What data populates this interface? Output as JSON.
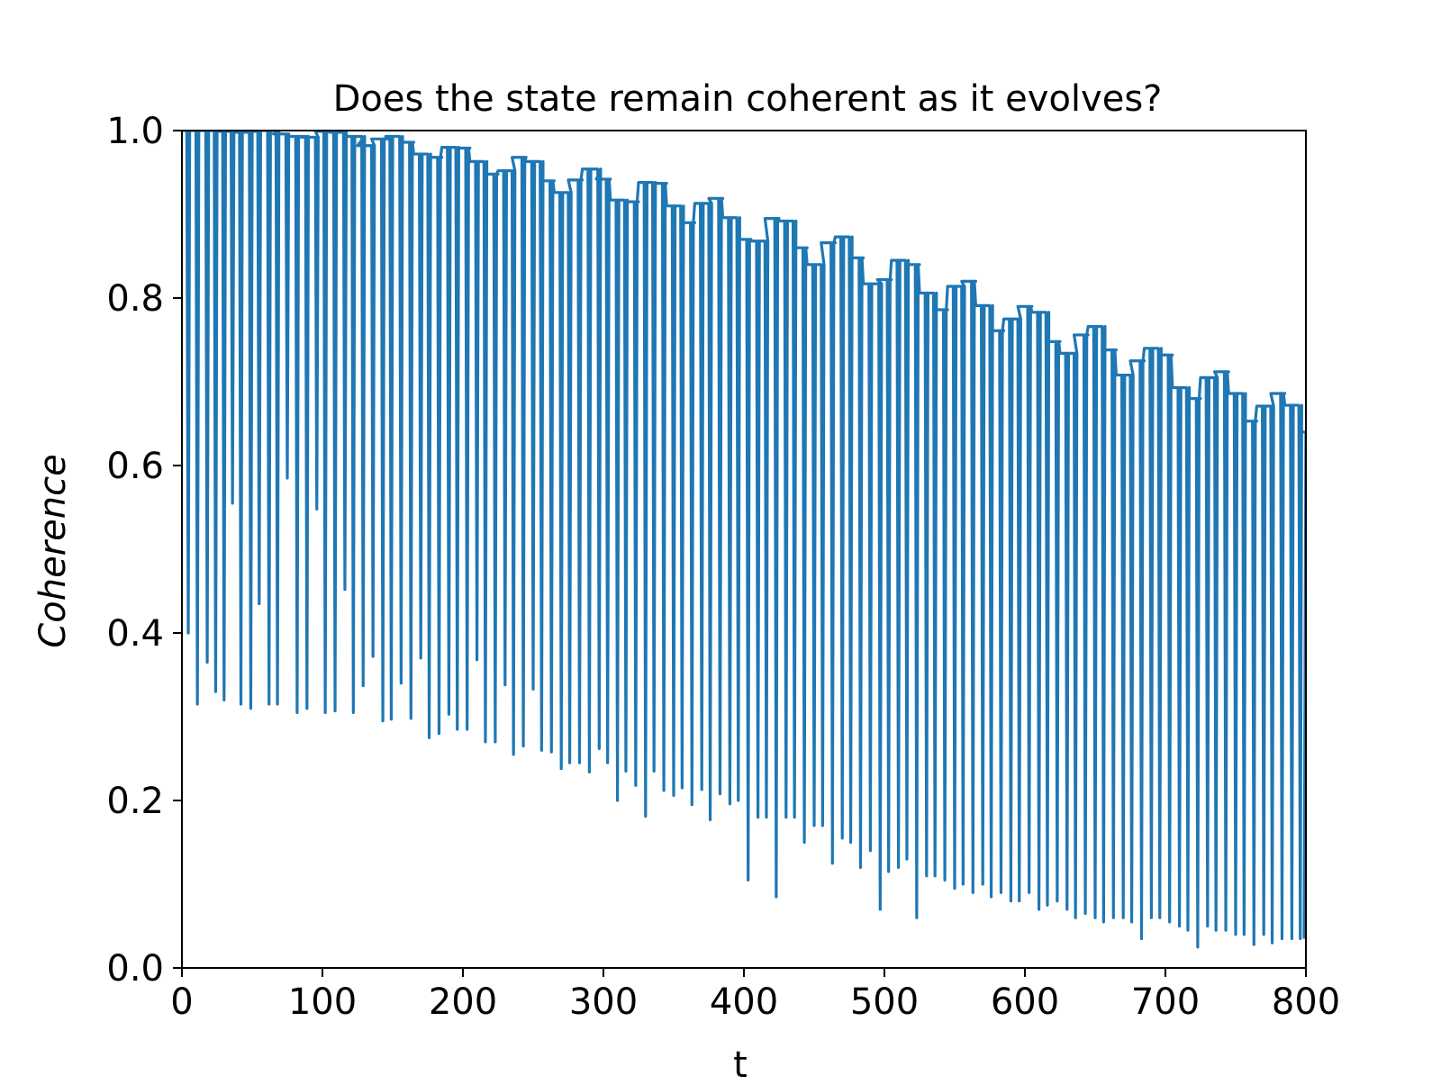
{
  "chart_data": {
    "type": "line",
    "title": "Does the state remain coherent as it evolves?",
    "xlabel": "t",
    "ylabel": "Coherence",
    "ylabel_style": "italic",
    "xlim": [
      0,
      800
    ],
    "ylim": [
      0.0,
      1.0
    ],
    "xticks": [
      "0",
      "100",
      "200",
      "300",
      "400",
      "500",
      "600",
      "700",
      "800"
    ],
    "yticks": [
      "0.0",
      "0.2",
      "0.4",
      "0.6",
      "0.8",
      "1.0"
    ],
    "grid": false,
    "legend": "none",
    "line_color": "#1f77b4",
    "series": [
      {
        "sample_spacing": 10,
        "maxima": [
          [
            0,
            1.0
          ],
          [
            10,
            1.0
          ],
          [
            20,
            1.0
          ],
          [
            30,
            0.999
          ],
          [
            40,
            0.998
          ],
          [
            50,
            0.999
          ],
          [
            60,
            1.0
          ],
          [
            70,
            0.996
          ],
          [
            80,
            0.993
          ],
          [
            90,
            0.992
          ],
          [
            100,
            0.999
          ],
          [
            110,
            0.998
          ],
          [
            120,
            0.993
          ],
          [
            130,
            0.982
          ],
          [
            140,
            0.99
          ],
          [
            150,
            0.993
          ],
          [
            160,
            0.986
          ],
          [
            170,
            0.972
          ],
          [
            180,
            0.968
          ],
          [
            190,
            0.98
          ],
          [
            200,
            0.979
          ],
          [
            210,
            0.963
          ],
          [
            220,
            0.948
          ],
          [
            230,
            0.952
          ],
          [
            240,
            0.968
          ],
          [
            250,
            0.963
          ],
          [
            260,
            0.94
          ],
          [
            270,
            0.926
          ],
          [
            280,
            0.941
          ],
          [
            290,
            0.954
          ],
          [
            300,
            0.942
          ],
          [
            310,
            0.917
          ],
          [
            320,
            0.915
          ],
          [
            330,
            0.938
          ],
          [
            340,
            0.937
          ],
          [
            350,
            0.91
          ],
          [
            360,
            0.89
          ],
          [
            370,
            0.913
          ],
          [
            380,
            0.919
          ],
          [
            390,
            0.896
          ],
          [
            400,
            0.87
          ],
          [
            410,
            0.868
          ],
          [
            420,
            0.895
          ],
          [
            430,
            0.892
          ],
          [
            440,
            0.86
          ],
          [
            450,
            0.84
          ],
          [
            460,
            0.866
          ],
          [
            470,
            0.873
          ],
          [
            480,
            0.848
          ],
          [
            490,
            0.817
          ],
          [
            500,
            0.822
          ],
          [
            510,
            0.845
          ],
          [
            520,
            0.84
          ],
          [
            530,
            0.806
          ],
          [
            540,
            0.786
          ],
          [
            550,
            0.814
          ],
          [
            560,
            0.82
          ],
          [
            570,
            0.791
          ],
          [
            580,
            0.761
          ],
          [
            590,
            0.775
          ],
          [
            600,
            0.79
          ],
          [
            610,
            0.783
          ],
          [
            620,
            0.748
          ],
          [
            630,
            0.734
          ],
          [
            640,
            0.756
          ],
          [
            650,
            0.766
          ],
          [
            660,
            0.738
          ],
          [
            670,
            0.708
          ],
          [
            680,
            0.725
          ],
          [
            690,
            0.74
          ],
          [
            700,
            0.732
          ],
          [
            710,
            0.693
          ],
          [
            720,
            0.68
          ],
          [
            730,
            0.705
          ],
          [
            740,
            0.712
          ],
          [
            750,
            0.686
          ],
          [
            760,
            0.653
          ],
          [
            770,
            0.671
          ],
          [
            780,
            0.686
          ],
          [
            790,
            0.672
          ],
          [
            800,
            0.64
          ]
        ],
        "minima": [
          [
            4.5,
            0.4
          ],
          [
            11,
            0.315
          ],
          [
            18,
            0.365
          ],
          [
            24,
            0.33
          ],
          [
            30,
            0.32
          ],
          [
            36,
            0.555
          ],
          [
            42,
            0.315
          ],
          [
            49,
            0.31
          ],
          [
            55,
            0.435
          ],
          [
            62,
            0.315
          ],
          [
            68,
            0.315
          ],
          [
            75,
            0.585
          ],
          [
            82,
            0.305
          ],
          [
            89,
            0.31
          ],
          [
            96,
            0.548
          ],
          [
            102,
            0.305
          ],
          [
            109,
            0.307
          ],
          [
            116,
            0.452
          ],
          [
            122,
            0.305
          ],
          [
            129,
            0.337
          ],
          [
            136,
            0.372
          ],
          [
            143,
            0.295
          ],
          [
            149,
            0.297
          ],
          [
            156,
            0.34
          ],
          [
            163,
            0.298
          ],
          [
            170,
            0.37
          ],
          [
            176,
            0.275
          ],
          [
            183,
            0.28
          ],
          [
            190,
            0.303
          ],
          [
            196,
            0.285
          ],
          [
            203,
            0.285
          ],
          [
            210,
            0.368
          ],
          [
            216,
            0.27
          ],
          [
            223,
            0.27
          ],
          [
            230,
            0.338
          ],
          [
            236,
            0.255
          ],
          [
            243,
            0.265
          ],
          [
            250,
            0.333
          ],
          [
            256,
            0.26
          ],
          [
            263,
            0.258
          ],
          [
            270,
            0.238
          ],
          [
            276,
            0.245
          ],
          [
            283,
            0.245
          ],
          [
            290,
            0.234
          ],
          [
            297,
            0.262
          ],
          [
            303,
            0.245
          ],
          [
            310,
            0.2
          ],
          [
            316,
            0.235
          ],
          [
            323,
            0.218
          ],
          [
            330,
            0.181
          ],
          [
            336,
            0.235
          ],
          [
            343,
            0.212
          ],
          [
            350,
            0.206
          ],
          [
            356,
            0.215
          ],
          [
            363,
            0.195
          ],
          [
            370,
            0.213
          ],
          [
            376,
            0.177
          ],
          [
            383,
            0.208
          ],
          [
            390,
            0.196
          ],
          [
            396,
            0.2
          ],
          [
            403,
            0.105
          ],
          [
            410,
            0.18
          ],
          [
            416,
            0.18
          ],
          [
            423,
            0.085
          ],
          [
            430,
            0.18
          ],
          [
            436,
            0.18
          ],
          [
            443,
            0.15
          ],
          [
            450,
            0.17
          ],
          [
            456,
            0.17
          ],
          [
            463,
            0.125
          ],
          [
            470,
            0.155
          ],
          [
            476,
            0.15
          ],
          [
            483,
            0.12
          ],
          [
            490,
            0.14
          ],
          [
            497,
            0.07
          ],
          [
            503,
            0.115
          ],
          [
            510,
            0.12
          ],
          [
            516,
            0.13
          ],
          [
            523,
            0.06
          ],
          [
            530,
            0.11
          ],
          [
            536,
            0.11
          ],
          [
            543,
            0.105
          ],
          [
            550,
            0.095
          ],
          [
            556,
            0.1
          ],
          [
            563,
            0.09
          ],
          [
            570,
            0.1
          ],
          [
            576,
            0.085
          ],
          [
            583,
            0.09
          ],
          [
            590,
            0.08
          ],
          [
            596,
            0.08
          ],
          [
            603,
            0.09
          ],
          [
            610,
            0.07
          ],
          [
            616,
            0.075
          ],
          [
            623,
            0.08
          ],
          [
            630,
            0.07
          ],
          [
            636,
            0.06
          ],
          [
            643,
            0.065
          ],
          [
            650,
            0.06
          ],
          [
            656,
            0.055
          ],
          [
            663,
            0.06
          ],
          [
            670,
            0.06
          ],
          [
            676,
            0.055
          ],
          [
            683,
            0.035
          ],
          [
            690,
            0.06
          ],
          [
            696,
            0.06
          ],
          [
            703,
            0.055
          ],
          [
            710,
            0.05
          ],
          [
            716,
            0.045
          ],
          [
            723,
            0.025
          ],
          [
            730,
            0.05
          ],
          [
            736,
            0.045
          ],
          [
            743,
            0.045
          ],
          [
            750,
            0.04
          ],
          [
            756,
            0.04
          ],
          [
            763,
            0.028
          ],
          [
            770,
            0.04
          ],
          [
            776,
            0.03
          ],
          [
            783,
            0.035
          ],
          [
            790,
            0.035
          ],
          [
            796,
            0.035
          ]
        ]
      }
    ]
  }
}
